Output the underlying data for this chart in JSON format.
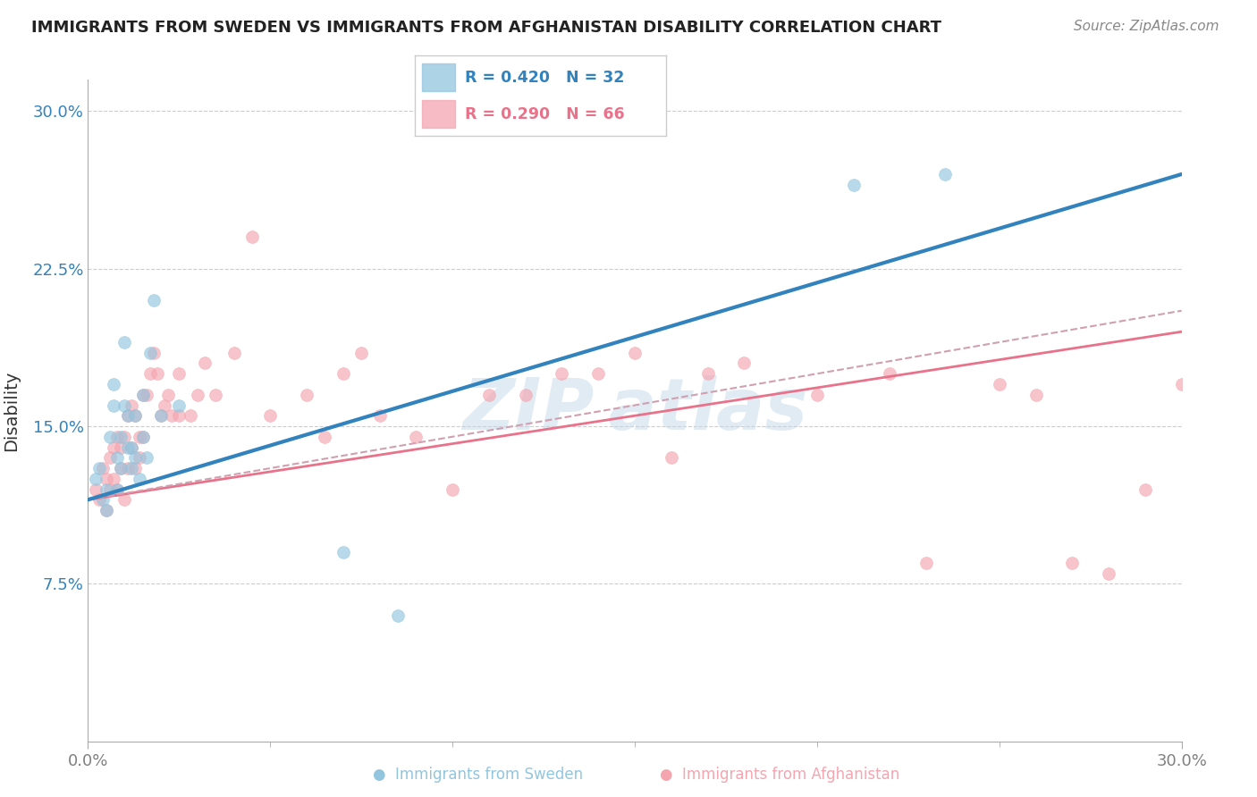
{
  "title": "IMMIGRANTS FROM SWEDEN VS IMMIGRANTS FROM AFGHANISTAN DISABILITY CORRELATION CHART",
  "source": "Source: ZipAtlas.com",
  "ylabel": "Disability",
  "xlim": [
    0,
    0.3
  ],
  "ylim": [
    0,
    0.315
  ],
  "yticks": [
    0.075,
    0.15,
    0.225,
    0.3
  ],
  "ytick_labels": [
    "7.5%",
    "15.0%",
    "22.5%",
    "30.0%"
  ],
  "xticks": [
    0.0,
    0.3
  ],
  "xtick_labels": [
    "0.0%",
    "30.0%"
  ],
  "legend_blue_r": "R = 0.420",
  "legend_blue_n": "N = 32",
  "legend_pink_r": "R = 0.290",
  "legend_pink_n": "N = 66",
  "blue_color": "#92c5de",
  "pink_color": "#f4a5b0",
  "blue_line_color": "#3182bd",
  "pink_line_color": "#e8728a",
  "pink_dash_color": "#d0a0b0",
  "blue_scatter_x": [
    0.002,
    0.003,
    0.004,
    0.005,
    0.005,
    0.006,
    0.007,
    0.007,
    0.008,
    0.008,
    0.009,
    0.009,
    0.01,
    0.01,
    0.011,
    0.011,
    0.012,
    0.012,
    0.013,
    0.013,
    0.014,
    0.015,
    0.015,
    0.016,
    0.017,
    0.018,
    0.02,
    0.025,
    0.07,
    0.085,
    0.21,
    0.235
  ],
  "blue_scatter_y": [
    0.125,
    0.13,
    0.115,
    0.12,
    0.11,
    0.145,
    0.17,
    0.16,
    0.135,
    0.12,
    0.145,
    0.13,
    0.19,
    0.16,
    0.155,
    0.14,
    0.14,
    0.13,
    0.155,
    0.135,
    0.125,
    0.165,
    0.145,
    0.135,
    0.185,
    0.21,
    0.155,
    0.16,
    0.09,
    0.06,
    0.265,
    0.27
  ],
  "pink_scatter_x": [
    0.002,
    0.003,
    0.004,
    0.005,
    0.005,
    0.006,
    0.006,
    0.007,
    0.007,
    0.008,
    0.008,
    0.009,
    0.009,
    0.01,
    0.01,
    0.011,
    0.011,
    0.012,
    0.012,
    0.013,
    0.013,
    0.014,
    0.014,
    0.015,
    0.015,
    0.016,
    0.017,
    0.018,
    0.019,
    0.02,
    0.021,
    0.022,
    0.023,
    0.025,
    0.025,
    0.028,
    0.03,
    0.032,
    0.035,
    0.04,
    0.045,
    0.05,
    0.06,
    0.065,
    0.07,
    0.075,
    0.08,
    0.09,
    0.1,
    0.11,
    0.12,
    0.13,
    0.14,
    0.15,
    0.16,
    0.17,
    0.18,
    0.2,
    0.22,
    0.23,
    0.25,
    0.26,
    0.27,
    0.28,
    0.29,
    0.3
  ],
  "pink_scatter_y": [
    0.12,
    0.115,
    0.13,
    0.125,
    0.11,
    0.135,
    0.12,
    0.14,
    0.125,
    0.145,
    0.12,
    0.13,
    0.14,
    0.115,
    0.145,
    0.155,
    0.13,
    0.16,
    0.14,
    0.155,
    0.13,
    0.145,
    0.135,
    0.165,
    0.145,
    0.165,
    0.175,
    0.185,
    0.175,
    0.155,
    0.16,
    0.165,
    0.155,
    0.175,
    0.155,
    0.155,
    0.165,
    0.18,
    0.165,
    0.185,
    0.24,
    0.155,
    0.165,
    0.145,
    0.175,
    0.185,
    0.155,
    0.145,
    0.12,
    0.165,
    0.165,
    0.175,
    0.175,
    0.185,
    0.135,
    0.175,
    0.18,
    0.165,
    0.175,
    0.085,
    0.17,
    0.165,
    0.085,
    0.08,
    0.12,
    0.17
  ],
  "blue_line_x": [
    0.0,
    0.3
  ],
  "blue_line_y": [
    0.115,
    0.27
  ],
  "pink_solid_line_x": [
    0.0,
    0.3
  ],
  "pink_solid_line_y": [
    0.115,
    0.195
  ],
  "pink_dash_line_x": [
    0.0,
    0.3
  ],
  "pink_dash_line_y": [
    0.115,
    0.205
  ]
}
